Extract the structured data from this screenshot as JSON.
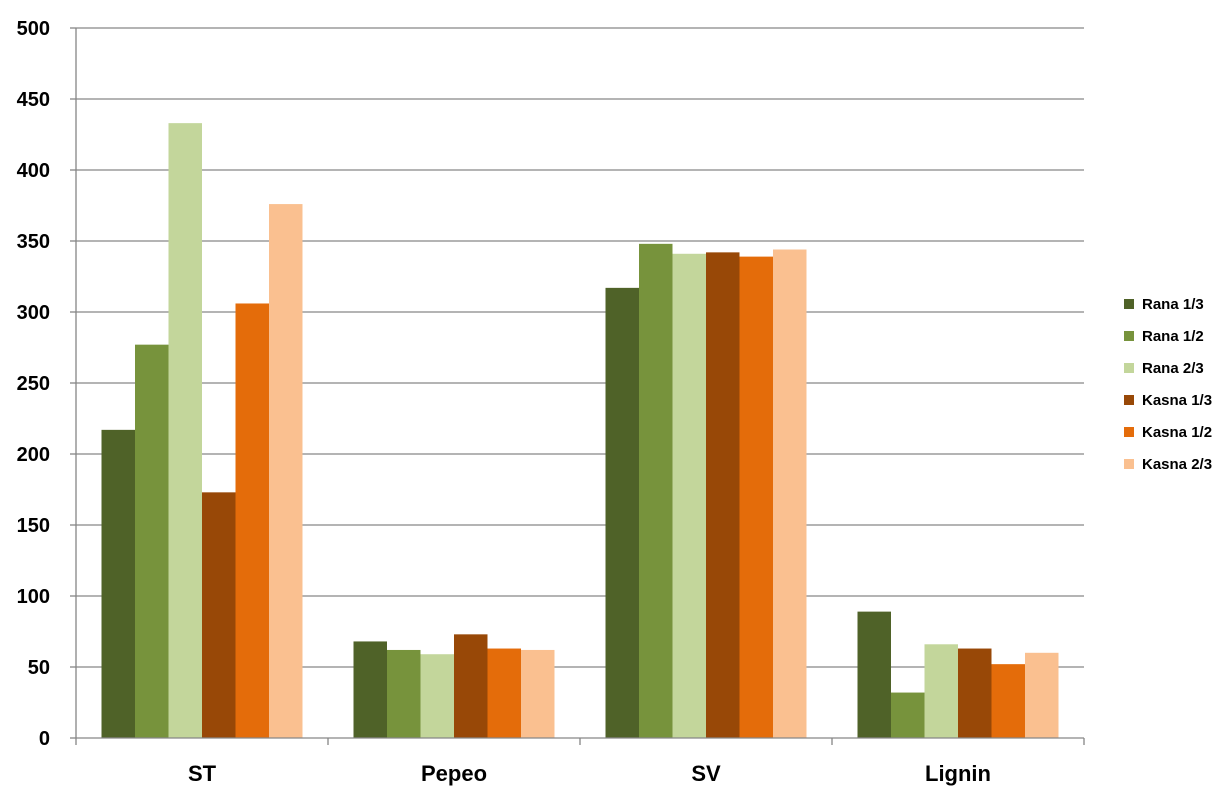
{
  "chart_data": {
    "type": "bar",
    "categories": [
      "ST",
      "Pepeo",
      "SV",
      "Lignin"
    ],
    "series": [
      {
        "name": "Rana 1/3",
        "color": "#4f6228",
        "values": [
          217,
          68,
          317,
          89
        ]
      },
      {
        "name": "Rana 1/2",
        "color": "#77933c",
        "values": [
          277,
          62,
          348,
          32
        ]
      },
      {
        "name": "Rana 2/3",
        "color": "#c3d69b",
        "values": [
          433,
          59,
          341,
          66
        ]
      },
      {
        "name": "Kasna 1/3",
        "color": "#984807",
        "values": [
          173,
          73,
          342,
          63
        ]
      },
      {
        "name": "Kasna 1/2",
        "color": "#e46c0a",
        "values": [
          306,
          63,
          339,
          52
        ]
      },
      {
        "name": "Kasna 2/3",
        "color": "#fac090",
        "values": [
          376,
          62,
          344,
          60
        ]
      }
    ],
    "ylim": [
      0,
      500
    ],
    "yticks": [
      "0",
      "50",
      "100",
      "150",
      "200",
      "250",
      "300",
      "350",
      "400",
      "450",
      "500"
    ],
    "grid": true,
    "legend_position": "right"
  }
}
